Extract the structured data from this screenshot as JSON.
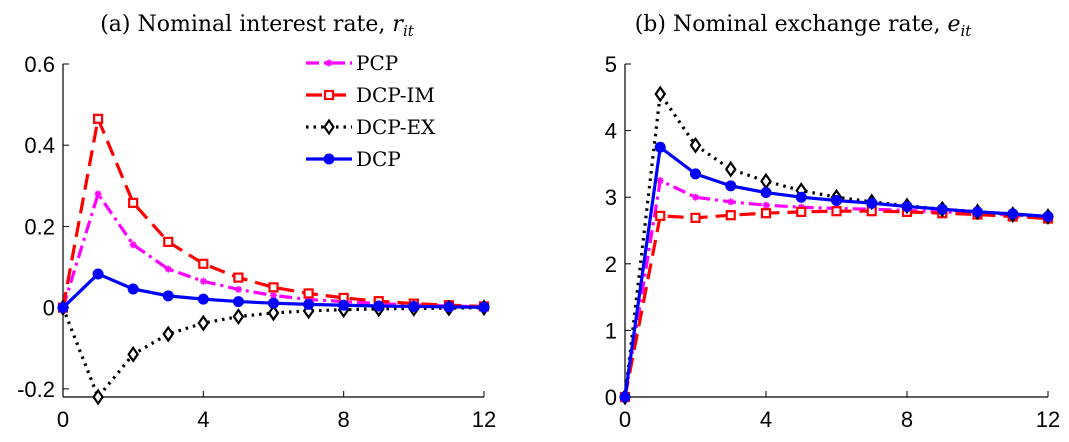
{
  "chart_data": [
    {
      "type": "line",
      "title": "(a) Nominal interest rate,",
      "title_symbol": "r",
      "title_subscript": "it",
      "xlim": [
        0,
        12
      ],
      "ylim": [
        -0.22,
        0.6
      ],
      "xticks": [
        "0",
        "4",
        "8",
        "12"
      ],
      "xtick_values": [
        0,
        4,
        8,
        12
      ],
      "yticks": [
        "-0.2",
        "0",
        "0.2",
        "0.4",
        "0.6"
      ],
      "ytick_values": [
        -0.2,
        0,
        0.2,
        0.4,
        0.6
      ],
      "legend_position": "top-right",
      "x": [
        0,
        1,
        2,
        3,
        4,
        5,
        6,
        7,
        8,
        9,
        10,
        11,
        12
      ],
      "series": [
        {
          "name": "PCP",
          "color": "#ff00ff",
          "dash": "dashdot",
          "marker": "star",
          "values": [
            0,
            0.28,
            0.155,
            0.095,
            0.065,
            0.045,
            0.03,
            0.02,
            0.015,
            0.01,
            0.007,
            0.004,
            0.002
          ]
        },
        {
          "name": "DCP-IM",
          "color": "#ff0000",
          "dash": "dashed",
          "marker": "square",
          "values": [
            0,
            0.465,
            0.258,
            0.162,
            0.108,
            0.074,
            0.05,
            0.035,
            0.024,
            0.016,
            0.01,
            0.006,
            0.003
          ]
        },
        {
          "name": "DCP-EX",
          "color": "#000000",
          "dash": "dotted",
          "marker": "diamond",
          "values": [
            0,
            -0.22,
            -0.115,
            -0.065,
            -0.038,
            -0.022,
            -0.013,
            -0.008,
            -0.005,
            -0.003,
            -0.002,
            -0.001,
            0
          ]
        },
        {
          "name": "DCP",
          "color": "#0000ff",
          "dash": "solid",
          "marker": "circle",
          "values": [
            0,
            0.083,
            0.046,
            0.029,
            0.021,
            0.015,
            0.011,
            0.008,
            0.006,
            0.004,
            0.003,
            0.002,
            0.001
          ]
        }
      ]
    },
    {
      "type": "line",
      "title": "(b) Nominal exchange rate,",
      "title_symbol": "e",
      "title_subscript": "it",
      "xlim": [
        0,
        12
      ],
      "ylim": [
        0,
        5
      ],
      "xticks": [
        "0",
        "4",
        "8",
        "12"
      ],
      "xtick_values": [
        0,
        4,
        8,
        12
      ],
      "yticks": [
        "0",
        "1",
        "2",
        "3",
        "4",
        "5"
      ],
      "ytick_values": [
        0,
        1,
        2,
        3,
        4,
        5
      ],
      "x": [
        0,
        1,
        2,
        3,
        4,
        5,
        6,
        7,
        8,
        9,
        10,
        11,
        12
      ],
      "series": [
        {
          "name": "PCP",
          "color": "#ff00ff",
          "dash": "dashdot",
          "marker": "star",
          "values": [
            0,
            3.25,
            3.0,
            2.93,
            2.88,
            2.85,
            2.83,
            2.82,
            2.8,
            2.78,
            2.76,
            2.73,
            2.7
          ]
        },
        {
          "name": "DCP-IM",
          "color": "#ff0000",
          "dash": "dashed",
          "marker": "square",
          "values": [
            0,
            2.72,
            2.69,
            2.73,
            2.76,
            2.78,
            2.79,
            2.79,
            2.78,
            2.76,
            2.74,
            2.71,
            2.68
          ]
        },
        {
          "name": "DCP-EX",
          "color": "#000000",
          "dash": "dotted",
          "marker": "diamond",
          "values": [
            0,
            4.55,
            3.78,
            3.42,
            3.24,
            3.1,
            3.0,
            2.93,
            2.87,
            2.82,
            2.78,
            2.74,
            2.71
          ]
        },
        {
          "name": "DCP",
          "color": "#0000ff",
          "dash": "solid",
          "marker": "circle",
          "values": [
            0,
            3.75,
            3.35,
            3.17,
            3.07,
            3.0,
            2.95,
            2.91,
            2.86,
            2.82,
            2.78,
            2.75,
            2.71
          ]
        }
      ]
    }
  ]
}
